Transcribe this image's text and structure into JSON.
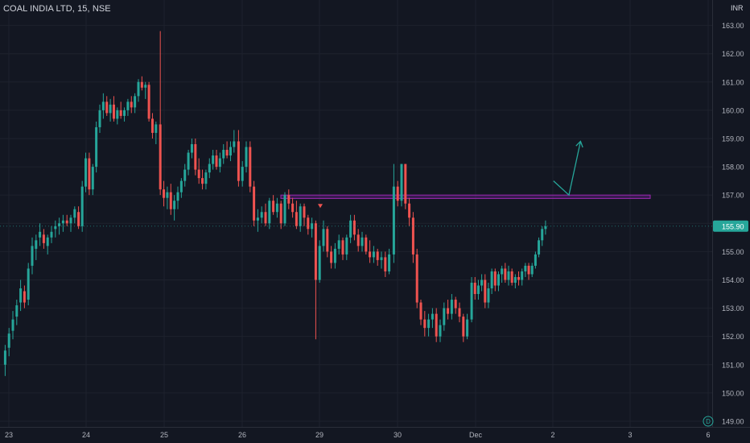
{
  "header": {
    "symbol": "COAL INDIA LTD",
    "interval": "15",
    "exchange": "NSE",
    "title": "COAL INDIA LTD, 15, NSE",
    "currency": "INR"
  },
  "colors": {
    "background": "#131722",
    "grid": "#1e222d",
    "up": "#26a69a",
    "down": "#ef5350",
    "axis_text": "#b2b5be",
    "last_price_bg": "#26a69a",
    "zone": "#7b1fa2",
    "arrow": "#26a69a"
  },
  "chart_data": {
    "type": "candlestick",
    "title": "COAL INDIA LTD, 15, NSE",
    "ylabel": "INR",
    "y_ticks": [
      "149.00",
      "150.00",
      "151.00",
      "152.00",
      "153.00",
      "154.00",
      "155.00",
      "156.00",
      "157.00",
      "158.00",
      "159.00",
      "160.00",
      "161.00",
      "162.00",
      "163.00"
    ],
    "ylim": [
      148.8,
      163.9
    ],
    "x_ticks": [
      "23",
      "24",
      "25",
      "26",
      "29",
      "30",
      "Dec",
      "2",
      "3",
      "6"
    ],
    "grid": true,
    "last_price": 155.9,
    "last_price_label": "155.90",
    "resistance_zone": {
      "from_day": "26",
      "to_day": "3",
      "low": 156.88,
      "high": 157.0
    },
    "projection_arrow": [
      [
        2.05,
        157.5
      ],
      [
        2.25,
        157.0
      ],
      [
        2.4,
        158.9
      ]
    ],
    "sessions": [
      {
        "day": "23",
        "ohlc": [
          [
            151.0,
            151.7,
            150.6,
            151.5
          ],
          [
            151.6,
            152.3,
            151.3,
            152.1
          ],
          [
            152.2,
            152.9,
            151.9,
            152.6
          ],
          [
            152.7,
            153.3,
            152.4,
            153.1
          ],
          [
            153.2,
            154.0,
            152.9,
            153.7
          ],
          [
            153.6,
            153.8,
            153.0,
            153.2
          ],
          [
            153.3,
            154.6,
            153.1,
            154.4
          ],
          [
            154.5,
            155.5,
            154.2,
            155.2
          ],
          [
            155.1,
            155.6,
            154.7,
            155.4
          ],
          [
            155.5,
            156.0,
            155.2,
            155.7
          ],
          [
            155.6,
            155.8,
            155.1,
            155.3
          ],
          [
            155.2,
            155.6,
            154.9,
            155.5
          ],
          [
            155.5,
            155.9,
            155.3,
            155.7
          ],
          [
            155.8,
            156.1,
            155.5,
            155.9
          ],
          [
            155.9,
            156.2,
            155.6,
            156.0
          ],
          [
            156.0,
            156.3,
            155.7,
            156.1
          ],
          [
            156.1,
            156.3,
            155.9,
            156.0
          ],
          [
            156.0,
            156.3,
            155.7,
            156.2
          ],
          [
            156.2,
            156.6,
            156.0,
            156.5
          ],
          [
            156.4,
            156.6,
            155.8,
            155.9
          ]
        ]
      },
      {
        "day": "24",
        "ohlc": [
          [
            155.9,
            157.5,
            155.7,
            157.3
          ],
          [
            157.3,
            158.5,
            157.1,
            158.3
          ],
          [
            158.3,
            158.5,
            157.0,
            157.2
          ],
          [
            157.2,
            158.1,
            157.0,
            158.0
          ],
          [
            158.0,
            159.6,
            157.8,
            159.4
          ],
          [
            159.4,
            160.2,
            159.2,
            160.0
          ],
          [
            160.0,
            160.6,
            159.7,
            160.3
          ],
          [
            160.3,
            160.5,
            159.8,
            159.9
          ],
          [
            159.9,
            160.4,
            159.6,
            160.2
          ],
          [
            160.2,
            160.5,
            159.6,
            159.7
          ],
          [
            159.7,
            160.1,
            159.5,
            160.0
          ],
          [
            160.0,
            160.3,
            159.7,
            159.8
          ],
          [
            159.8,
            160.1,
            159.6,
            160.0
          ],
          [
            160.0,
            160.4,
            159.8,
            160.3
          ],
          [
            160.3,
            160.5,
            159.9,
            160.1
          ],
          [
            160.1,
            160.6,
            159.9,
            160.5
          ],
          [
            160.5,
            161.1,
            160.3,
            161.0
          ],
          [
            161.0,
            161.2,
            160.7,
            160.8
          ],
          [
            160.8,
            161.0,
            160.4,
            160.9
          ],
          [
            160.9,
            161.0,
            159.6,
            159.7
          ],
          [
            159.7,
            159.9,
            159.0,
            159.2
          ],
          [
            159.2,
            159.6,
            158.8,
            159.5
          ]
        ]
      },
      {
        "day": "25",
        "ohlc": [
          [
            159.5,
            162.8,
            157.0,
            157.2
          ],
          [
            157.2,
            157.5,
            156.6,
            156.9
          ],
          [
            156.9,
            157.3,
            156.5,
            157.1
          ],
          [
            157.1,
            157.4,
            156.3,
            156.5
          ],
          [
            156.5,
            157.0,
            156.1,
            156.8
          ],
          [
            156.8,
            157.3,
            156.5,
            157.1
          ],
          [
            157.1,
            157.6,
            156.9,
            157.5
          ],
          [
            157.5,
            158.1,
            157.3,
            157.9
          ],
          [
            157.9,
            158.6,
            157.7,
            158.5
          ],
          [
            158.5,
            159.0,
            158.3,
            158.8
          ],
          [
            158.8,
            159.0,
            157.7,
            157.9
          ],
          [
            157.9,
            158.3,
            157.4,
            157.6
          ],
          [
            157.6,
            157.9,
            157.2,
            157.4
          ],
          [
            157.4,
            157.9,
            157.2,
            157.8
          ],
          [
            157.8,
            158.3,
            157.6,
            158.1
          ],
          [
            158.1,
            158.6,
            157.9,
            158.4
          ],
          [
            158.4,
            158.6,
            157.9,
            158.0
          ],
          [
            158.0,
            158.5,
            157.8,
            158.3
          ],
          [
            158.3,
            158.8,
            158.1,
            158.6
          ],
          [
            158.6,
            158.9,
            158.3,
            158.4
          ],
          [
            158.4,
            158.9,
            158.2,
            158.7
          ],
          [
            158.7,
            159.3,
            158.5,
            158.9
          ]
        ]
      },
      {
        "day": "26",
        "ohlc": [
          [
            158.9,
            159.3,
            157.3,
            157.5
          ],
          [
            157.5,
            158.2,
            157.3,
            158.0
          ],
          [
            158.0,
            158.9,
            157.8,
            158.7
          ],
          [
            158.7,
            158.9,
            157.1,
            157.3
          ],
          [
            157.3,
            157.5,
            155.9,
            156.1
          ],
          [
            156.1,
            156.5,
            155.7,
            156.2
          ],
          [
            156.2,
            156.6,
            156.0,
            156.4
          ],
          [
            156.4,
            156.7,
            155.9,
            156.0
          ],
          [
            156.0,
            156.9,
            155.8,
            156.8
          ],
          [
            156.8,
            157.0,
            156.3,
            156.4
          ],
          [
            156.4,
            156.9,
            156.2,
            156.7
          ],
          [
            156.7,
            156.8,
            155.8,
            156.0
          ],
          [
            156.0,
            157.1,
            155.9,
            157.0
          ],
          [
            157.0,
            157.2,
            156.5,
            156.7
          ],
          [
            156.7,
            156.9,
            156.2,
            156.4
          ],
          [
            156.4,
            156.8,
            155.8,
            155.9
          ],
          [
            155.9,
            156.7,
            155.7,
            156.6
          ],
          [
            156.6,
            156.7,
            155.9,
            156.2
          ],
          [
            156.2,
            156.3,
            155.6,
            155.8
          ],
          [
            155.8,
            156.2,
            155.5,
            156.0
          ]
        ]
      },
      {
        "day": "29",
        "ohlc": [
          [
            156.0,
            156.1,
            151.9,
            154.0
          ],
          [
            154.0,
            155.4,
            153.9,
            155.2
          ],
          [
            155.2,
            156.1,
            155.0,
            155.8
          ],
          [
            155.8,
            155.9,
            154.8,
            155.0
          ],
          [
            155.0,
            155.2,
            154.4,
            154.6
          ],
          [
            154.6,
            155.3,
            154.4,
            155.1
          ],
          [
            155.1,
            155.6,
            154.9,
            155.4
          ],
          [
            155.4,
            155.5,
            154.7,
            154.9
          ],
          [
            154.9,
            155.6,
            154.7,
            155.5
          ],
          [
            155.5,
            156.3,
            155.3,
            156.1
          ],
          [
            156.1,
            156.3,
            155.4,
            155.6
          ],
          [
            155.6,
            155.8,
            155.0,
            155.2
          ],
          [
            155.2,
            155.7,
            155.0,
            155.5
          ],
          [
            155.5,
            155.6,
            154.9,
            155.0
          ],
          [
            155.0,
            155.4,
            154.6,
            154.8
          ],
          [
            154.8,
            155.2,
            154.6,
            155.0
          ],
          [
            155.0,
            155.1,
            154.5,
            154.7
          ],
          [
            154.7,
            155.0,
            154.4,
            154.8
          ],
          [
            154.8,
            155.0,
            154.1,
            154.3
          ],
          [
            154.3,
            155.1,
            154.2,
            154.9
          ]
        ]
      },
      {
        "day": "30",
        "ohlc": [
          [
            154.9,
            158.1,
            154.6,
            157.3
          ],
          [
            157.3,
            157.5,
            156.6,
            156.8
          ],
          [
            156.8,
            158.1,
            156.6,
            158.1
          ],
          [
            158.1,
            158.1,
            156.5,
            156.7
          ],
          [
            156.7,
            156.9,
            155.9,
            156.2
          ],
          [
            156.2,
            156.4,
            154.6,
            154.9
          ],
          [
            154.9,
            155.1,
            153.0,
            153.2
          ],
          [
            153.2,
            153.3,
            152.4,
            152.6
          ],
          [
            152.6,
            152.9,
            152.0,
            152.3
          ],
          [
            152.3,
            152.8,
            152.0,
            152.6
          ],
          [
            152.6,
            153.0,
            152.3,
            152.8
          ],
          [
            152.8,
            153.0,
            151.8,
            152.0
          ],
          [
            152.0,
            152.6,
            151.8,
            152.4
          ],
          [
            152.4,
            153.2,
            152.2,
            153.0
          ],
          [
            153.0,
            153.3,
            152.6,
            152.8
          ],
          [
            152.8,
            153.5,
            152.6,
            153.3
          ],
          [
            153.3,
            153.4,
            152.8,
            153.0
          ],
          [
            153.0,
            153.2,
            152.5,
            152.7
          ],
          [
            152.7,
            152.8,
            151.8,
            152.0
          ],
          [
            152.0,
            152.8,
            151.9,
            152.6
          ]
        ]
      },
      {
        "day": "Dec",
        "ohlc": [
          [
            152.6,
            154.1,
            152.5,
            153.9
          ],
          [
            153.9,
            154.1,
            153.3,
            153.5
          ],
          [
            153.5,
            154.0,
            153.3,
            153.8
          ],
          [
            153.8,
            154.2,
            153.6,
            154.0
          ],
          [
            154.0,
            154.2,
            153.0,
            153.2
          ],
          [
            153.2,
            153.9,
            153.0,
            153.7
          ],
          [
            153.7,
            154.4,
            153.5,
            154.3
          ],
          [
            154.3,
            154.4,
            153.6,
            153.8
          ],
          [
            153.8,
            154.3,
            153.6,
            154.2
          ],
          [
            154.2,
            154.5,
            153.9,
            154.4
          ],
          [
            154.4,
            154.6,
            153.9,
            154.0
          ],
          [
            154.0,
            154.5,
            153.8,
            154.3
          ],
          [
            154.3,
            154.4,
            153.8,
            153.9
          ],
          [
            153.9,
            154.2,
            153.7,
            154.1
          ],
          [
            154.1,
            154.3,
            153.8,
            154.0
          ],
          [
            154.0,
            154.4,
            153.8,
            154.3
          ],
          [
            154.3,
            154.6,
            154.1,
            154.5
          ],
          [
            154.5,
            154.6,
            154.0,
            154.2
          ],
          [
            154.2,
            154.6,
            154.1,
            154.5
          ],
          [
            154.5,
            155.0,
            154.4,
            154.9
          ],
          [
            154.9,
            155.5,
            154.8,
            155.4
          ],
          [
            155.4,
            155.9,
            155.2,
            155.8
          ],
          [
            155.8,
            156.1,
            155.6,
            155.9
          ]
        ]
      }
    ]
  }
}
